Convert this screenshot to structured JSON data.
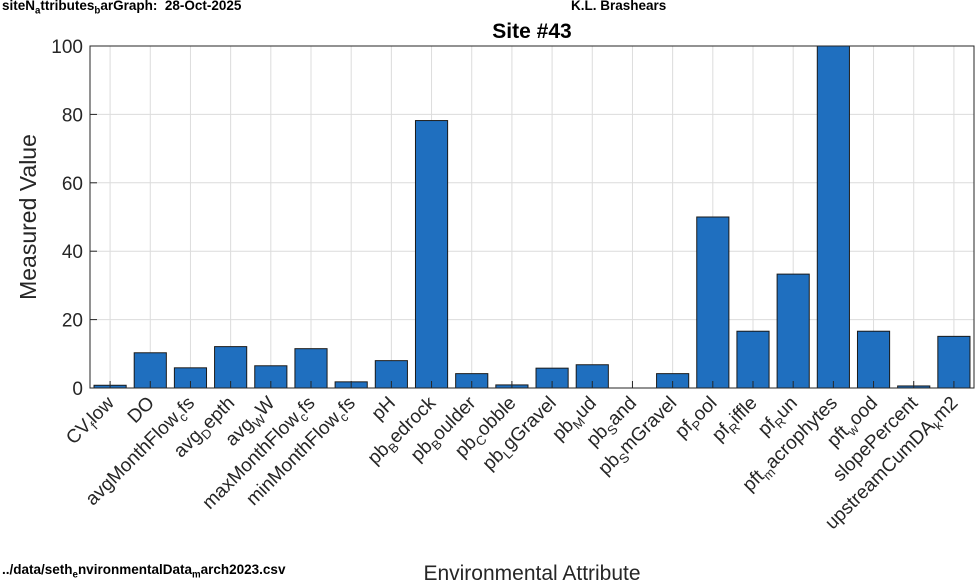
{
  "header": {
    "left_prefix": "siteN",
    "left_sub": "a",
    "left_mid": "ttributes",
    "left_sub2": "b",
    "left_suffix": "arGraph:  28-Oct-2025",
    "author": "K.L. Brashears"
  },
  "footer": {
    "path_prefix": "../data/seth",
    "path_sub": "e",
    "path_mid": "nvironmentalData",
    "path_sub2": "m",
    "path_suffix": "arch2023.csv"
  },
  "chart_data": {
    "type": "bar",
    "title": "Site #43",
    "xlabel": "Environmental Attribute",
    "ylabel": "Measured Value",
    "ylim": [
      0,
      100
    ],
    "yticks": [
      0,
      20,
      40,
      60,
      80,
      100
    ],
    "grid": true,
    "bar_color": "#1f6fbf",
    "categories": [
      {
        "base": "CV",
        "sub": "f",
        "rest": "low"
      },
      {
        "base": "DO",
        "sub": "",
        "rest": ""
      },
      {
        "base": "avgMonthFlow",
        "sub": "c",
        "rest": "fs"
      },
      {
        "base": "avg",
        "sub": "D",
        "rest": "epth"
      },
      {
        "base": "avg",
        "sub": "W",
        "rest": "W"
      },
      {
        "base": "maxMonthFlow",
        "sub": "c",
        "rest": "fs"
      },
      {
        "base": "minMonthFlow",
        "sub": "c",
        "rest": "fs"
      },
      {
        "base": "pH",
        "sub": "",
        "rest": ""
      },
      {
        "base": "pb",
        "sub": "B",
        "rest": "edrock"
      },
      {
        "base": "pb",
        "sub": "B",
        "rest": "oulder"
      },
      {
        "base": "pb",
        "sub": "C",
        "rest": "obble"
      },
      {
        "base": "pb",
        "sub": "L",
        "rest": "gGravel"
      },
      {
        "base": "pb",
        "sub": "M",
        "rest": "ud"
      },
      {
        "base": "pb",
        "sub": "S",
        "rest": "and"
      },
      {
        "base": "pb",
        "sub": "S",
        "rest": "mGravel"
      },
      {
        "base": "pf",
        "sub": "P",
        "rest": "ool"
      },
      {
        "base": "pf",
        "sub": "R",
        "rest": "iffle"
      },
      {
        "base": "pf",
        "sub": "R",
        "rest": "un"
      },
      {
        "base": "pft",
        "sub": "m",
        "rest": "acrophytes"
      },
      {
        "base": "pft",
        "sub": "w",
        "rest": "ood"
      },
      {
        "base": "slopePercent",
        "sub": "",
        "rest": ""
      },
      {
        "base": "upstreamCumDA",
        "sub": "k",
        "rest": "m2"
      }
    ],
    "values": [
      0.8,
      10.3,
      5.9,
      12.1,
      6.5,
      11.5,
      1.8,
      8.0,
      78.2,
      4.2,
      0.9,
      5.8,
      6.8,
      0.0,
      4.2,
      50.0,
      16.6,
      33.3,
      100.0,
      16.6,
      0.6,
      15.1
    ]
  }
}
